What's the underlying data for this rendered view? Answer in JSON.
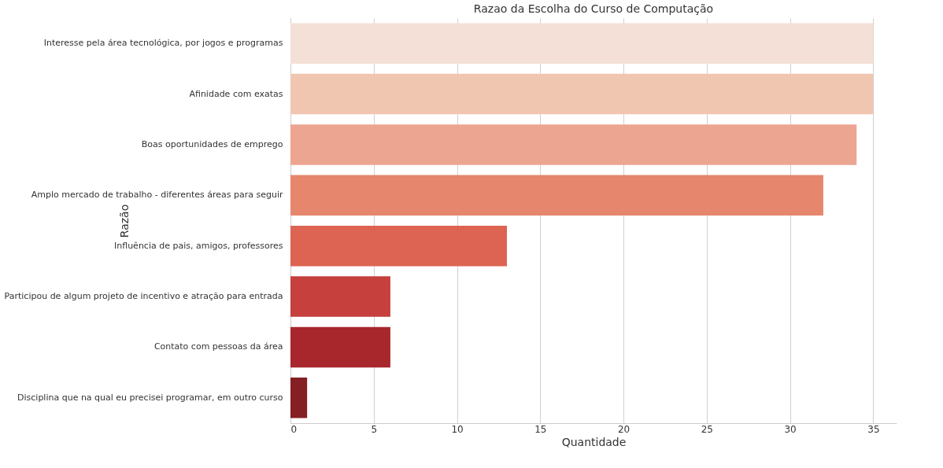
{
  "chart_data": {
    "type": "bar",
    "orientation": "horizontal",
    "title": "Razao da Escolha do Curso de Computação",
    "xlabel": "Quantidade",
    "ylabel": "Razão",
    "categories": [
      "Interesse pela área tecnológica, por jogos e programas",
      "Afinidade com exatas",
      "Boas oportunidades de emprego",
      "Amplo mercado de trabalho - diferentes áreas para seguir",
      "Influência de pais, amigos, professores",
      "Participou de algum projeto de incentivo e atração para entrada",
      "Contato com pessoas da área",
      "Disciplina que na qual eu precisei programar, em outro curso"
    ],
    "values": [
      35,
      35,
      34,
      32,
      13,
      6,
      6,
      1
    ],
    "colors": [
      "#f4e0d7",
      "#f1c6b1",
      "#eca590",
      "#e6866d",
      "#dd6452",
      "#c6403d",
      "#a8272d",
      "#861f24"
    ],
    "xlim": [
      0,
      36.4
    ],
    "xticks": [
      0,
      5,
      10,
      15,
      20,
      25,
      30,
      35
    ],
    "grid": "x"
  }
}
